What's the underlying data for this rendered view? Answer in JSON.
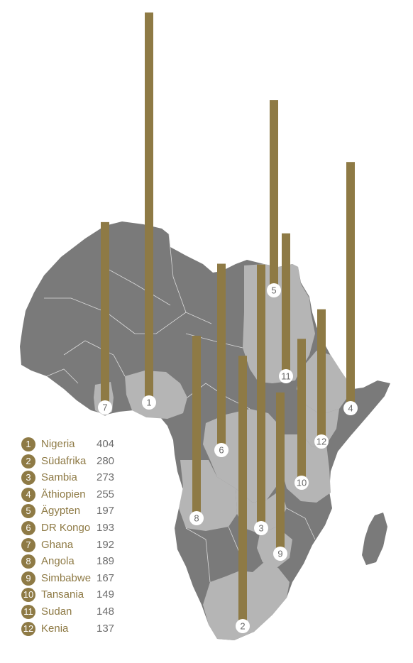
{
  "colors": {
    "bar": "#8e7a45",
    "country_dark": "#7a7a7a",
    "country_light": "#b5b5b5",
    "border": "#dadada",
    "label_circle_fill": "#ffffff",
    "label_text": "#6a6a6a"
  },
  "entries": [
    {
      "rank": "1",
      "country": "Nigeria",
      "value": 404
    },
    {
      "rank": "2",
      "country": "Südafrika",
      "value": 280
    },
    {
      "rank": "3",
      "country": "Sambia",
      "value": 273
    },
    {
      "rank": "4",
      "country": "Äthiopien",
      "value": 255
    },
    {
      "rank": "5",
      "country": "Ägypten",
      "value": 197
    },
    {
      "rank": "6",
      "country": "DR Kongo",
      "value": 193
    },
    {
      "rank": "7",
      "country": "Ghana",
      "value": 192
    },
    {
      "rank": "8",
      "country": "Angola",
      "value": 189
    },
    {
      "rank": "9",
      "country": "Simbabwe",
      "value": 167
    },
    {
      "rank": "10",
      "country": "Tansania",
      "value": 149
    },
    {
      "rank": "11",
      "country": "Sudan",
      "value": 148
    },
    {
      "rank": "12",
      "country": "Kenia",
      "value": 137
    }
  ]
}
